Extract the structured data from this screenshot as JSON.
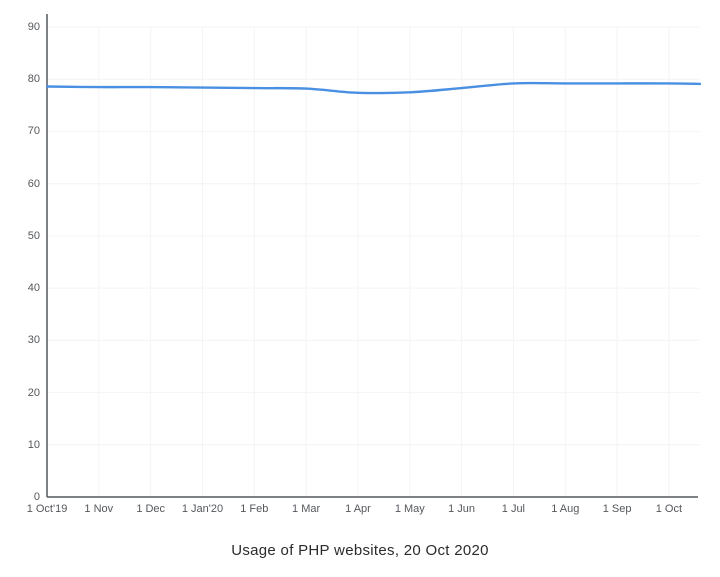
{
  "page": {
    "background": "#ffffff"
  },
  "chart_data": {
    "type": "line",
    "title": "Usage of PHP websites, 20 Oct 2020",
    "xlabel": "",
    "ylabel": "",
    "x_tick_labels": [
      "1 Oct'19",
      "1 Nov",
      "1 Dec",
      "1 Jan'20",
      "1 Feb",
      "1 Mar",
      "1 Apr",
      "1 May",
      "1 Jun",
      "1 Jul",
      "1 Aug",
      "1 Sep",
      "1 Oct"
    ],
    "x_tick_positions": [
      0,
      1,
      2,
      3,
      4,
      5,
      6,
      7,
      8,
      9,
      10,
      11,
      12
    ],
    "y_ticks": [
      0,
      10,
      20,
      30,
      40,
      50,
      60,
      70,
      80,
      90
    ],
    "ylim": [
      0,
      92.5
    ],
    "xlim": [
      0,
      12.6
    ],
    "grid": true,
    "legend": "none",
    "colors": {
      "line": "#4a90e2",
      "axis": "#55585c",
      "grid": "#f4f4f6",
      "tick_label": "#55585c",
      "title": "#2b2b2b"
    },
    "series": [
      {
        "name": "PHP",
        "x": [
          0,
          1,
          2,
          3,
          4,
          5,
          6,
          7,
          8,
          9,
          10,
          11,
          12,
          12.6
        ],
        "values": [
          78.6,
          78.5,
          78.5,
          78.4,
          78.3,
          78.2,
          77.4,
          77.5,
          78.3,
          79.2,
          79.2,
          79.2,
          79.2,
          79.1
        ]
      }
    ]
  }
}
